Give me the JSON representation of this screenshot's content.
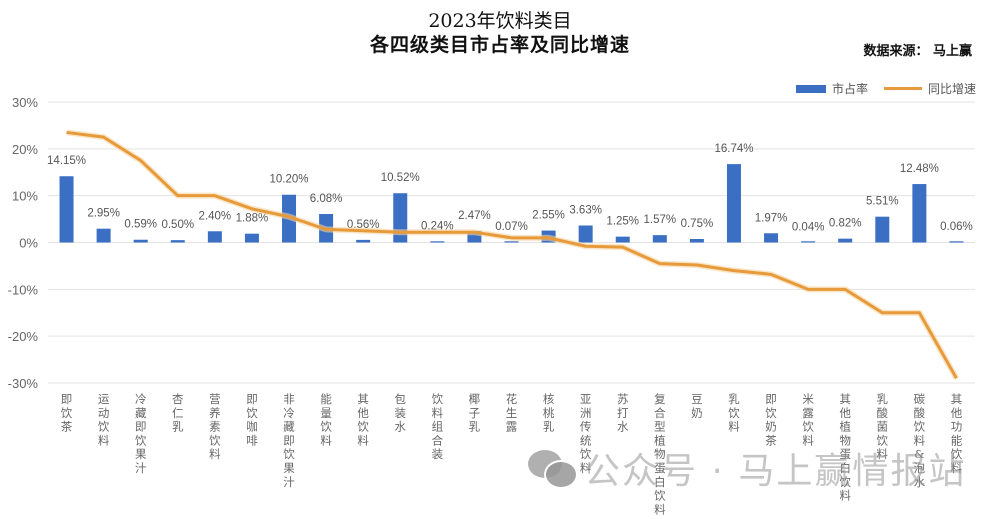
{
  "header": {
    "title_line1": "2023年饮料类目",
    "title_line2": "各四级类目市占率及同比增速",
    "source": "数据来源：  马上赢"
  },
  "legend": {
    "bar_label": "市占率",
    "line_label": "同比增速"
  },
  "colors": {
    "bar": "#3a6fc4",
    "line": "#e69a3a",
    "grid": "#e3e3e3",
    "axis_text": "#666666"
  },
  "watermark": {
    "text": "公众号 · 马上赢情报站"
  },
  "chart_data": {
    "type": "bar+line",
    "title": "2023年饮料类目 各四级类目市占率及同比增速",
    "xlabel": "",
    "ylabel": "",
    "ylim": [
      -30,
      30
    ],
    "yticks": [
      "30%",
      "20%",
      "10%",
      "0%",
      "-10%",
      "-20%",
      "-30%"
    ],
    "grid": true,
    "legend_position": "top-right",
    "categories": [
      "即饮茶",
      "运动饮料",
      "冷藏即饮果汁",
      "杏仁乳",
      "营养素饮料",
      "即饮咖啡",
      "非冷藏即饮果汁",
      "能量饮料",
      "其他饮料",
      "包装水",
      "饮料组合装",
      "椰子乳",
      "花生露",
      "核桃乳",
      "亚洲传统饮料",
      "苏打水",
      "复合型植物蛋白饮料",
      "豆奶",
      "乳饮料",
      "即饮奶茶",
      "米露饮料",
      "其他植物蛋白饮料",
      "乳酸菌饮料",
      "碳酸饮料&泡水",
      "其他功能饮料"
    ],
    "series": [
      {
        "name": "市占率",
        "type": "bar",
        "unit": "%",
        "values": [
          14.15,
          2.95,
          0.59,
          0.5,
          2.4,
          1.88,
          10.2,
          6.08,
          0.56,
          10.52,
          0.24,
          2.47,
          0.07,
          2.55,
          3.63,
          1.25,
          1.57,
          0.75,
          16.74,
          1.97,
          0.04,
          0.82,
          5.51,
          12.48,
          0.06
        ],
        "labels": [
          "14.15%",
          "2.95%",
          "0.59%",
          "0.50%",
          "2.40%",
          "1.88%",
          "10.20%",
          "6.08%",
          "0.56%",
          "10.52%",
          "0.24%",
          "2.47%",
          "0.07%",
          "2.55%",
          "3.63%",
          "1.25%",
          "1.57%",
          "0.75%",
          "16.74%",
          "1.97%",
          "0.04%",
          "0.82%",
          "5.51%",
          "12.48%",
          "0.06%"
        ]
      },
      {
        "name": "同比增速",
        "type": "line",
        "unit": "%",
        "values": [
          23.5,
          22.5,
          17.5,
          10.0,
          10.0,
          7.2,
          5.5,
          2.8,
          2.5,
          2.2,
          2.2,
          2.2,
          1.0,
          1.0,
          -0.8,
          -1.0,
          -4.5,
          -4.8,
          -6.0,
          -6.8,
          -10.0,
          -10.0,
          -15.0,
          -15.0,
          -29.0
        ]
      }
    ]
  }
}
